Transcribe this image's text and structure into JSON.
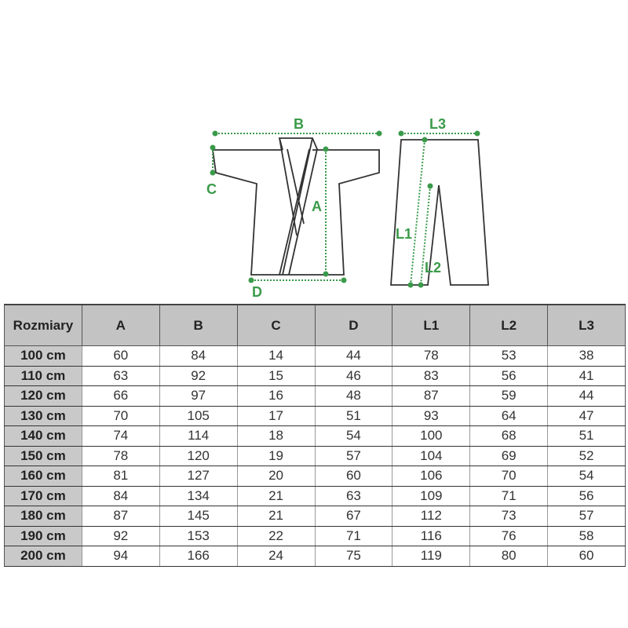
{
  "diagram": {
    "labels": {
      "B": "B",
      "C": "C",
      "A": "A",
      "D": "D",
      "L3": "L3",
      "L1": "L1",
      "L2": "L2"
    },
    "line_color": "#3a9a4a"
  },
  "table": {
    "headers": [
      "Rozmiary",
      "A",
      "B",
      "C",
      "D",
      "L1",
      "L2",
      "L3"
    ],
    "rows": [
      [
        "100 cm",
        "60",
        "84",
        "14",
        "44",
        "78",
        "53",
        "38"
      ],
      [
        "110 cm",
        "63",
        "92",
        "15",
        "46",
        "83",
        "56",
        "41"
      ],
      [
        "120 cm",
        "66",
        "97",
        "16",
        "48",
        "87",
        "59",
        "44"
      ],
      [
        "130 cm",
        "70",
        "105",
        "17",
        "51",
        "93",
        "64",
        "47"
      ],
      [
        "140 cm",
        "74",
        "114",
        "18",
        "54",
        "100",
        "68",
        "51"
      ],
      [
        "150 cm",
        "78",
        "120",
        "19",
        "57",
        "104",
        "69",
        "52"
      ],
      [
        "160 cm",
        "81",
        "127",
        "20",
        "60",
        "106",
        "70",
        "54"
      ],
      [
        "170 cm",
        "84",
        "134",
        "21",
        "63",
        "109",
        "71",
        "56"
      ],
      [
        "180 cm",
        "87",
        "145",
        "21",
        "67",
        "112",
        "73",
        "57"
      ],
      [
        "190 cm",
        "92",
        "153",
        "22",
        "71",
        "116",
        "76",
        "58"
      ],
      [
        "200 cm",
        "94",
        "166",
        "24",
        "75",
        "119",
        "80",
        "60"
      ]
    ]
  }
}
